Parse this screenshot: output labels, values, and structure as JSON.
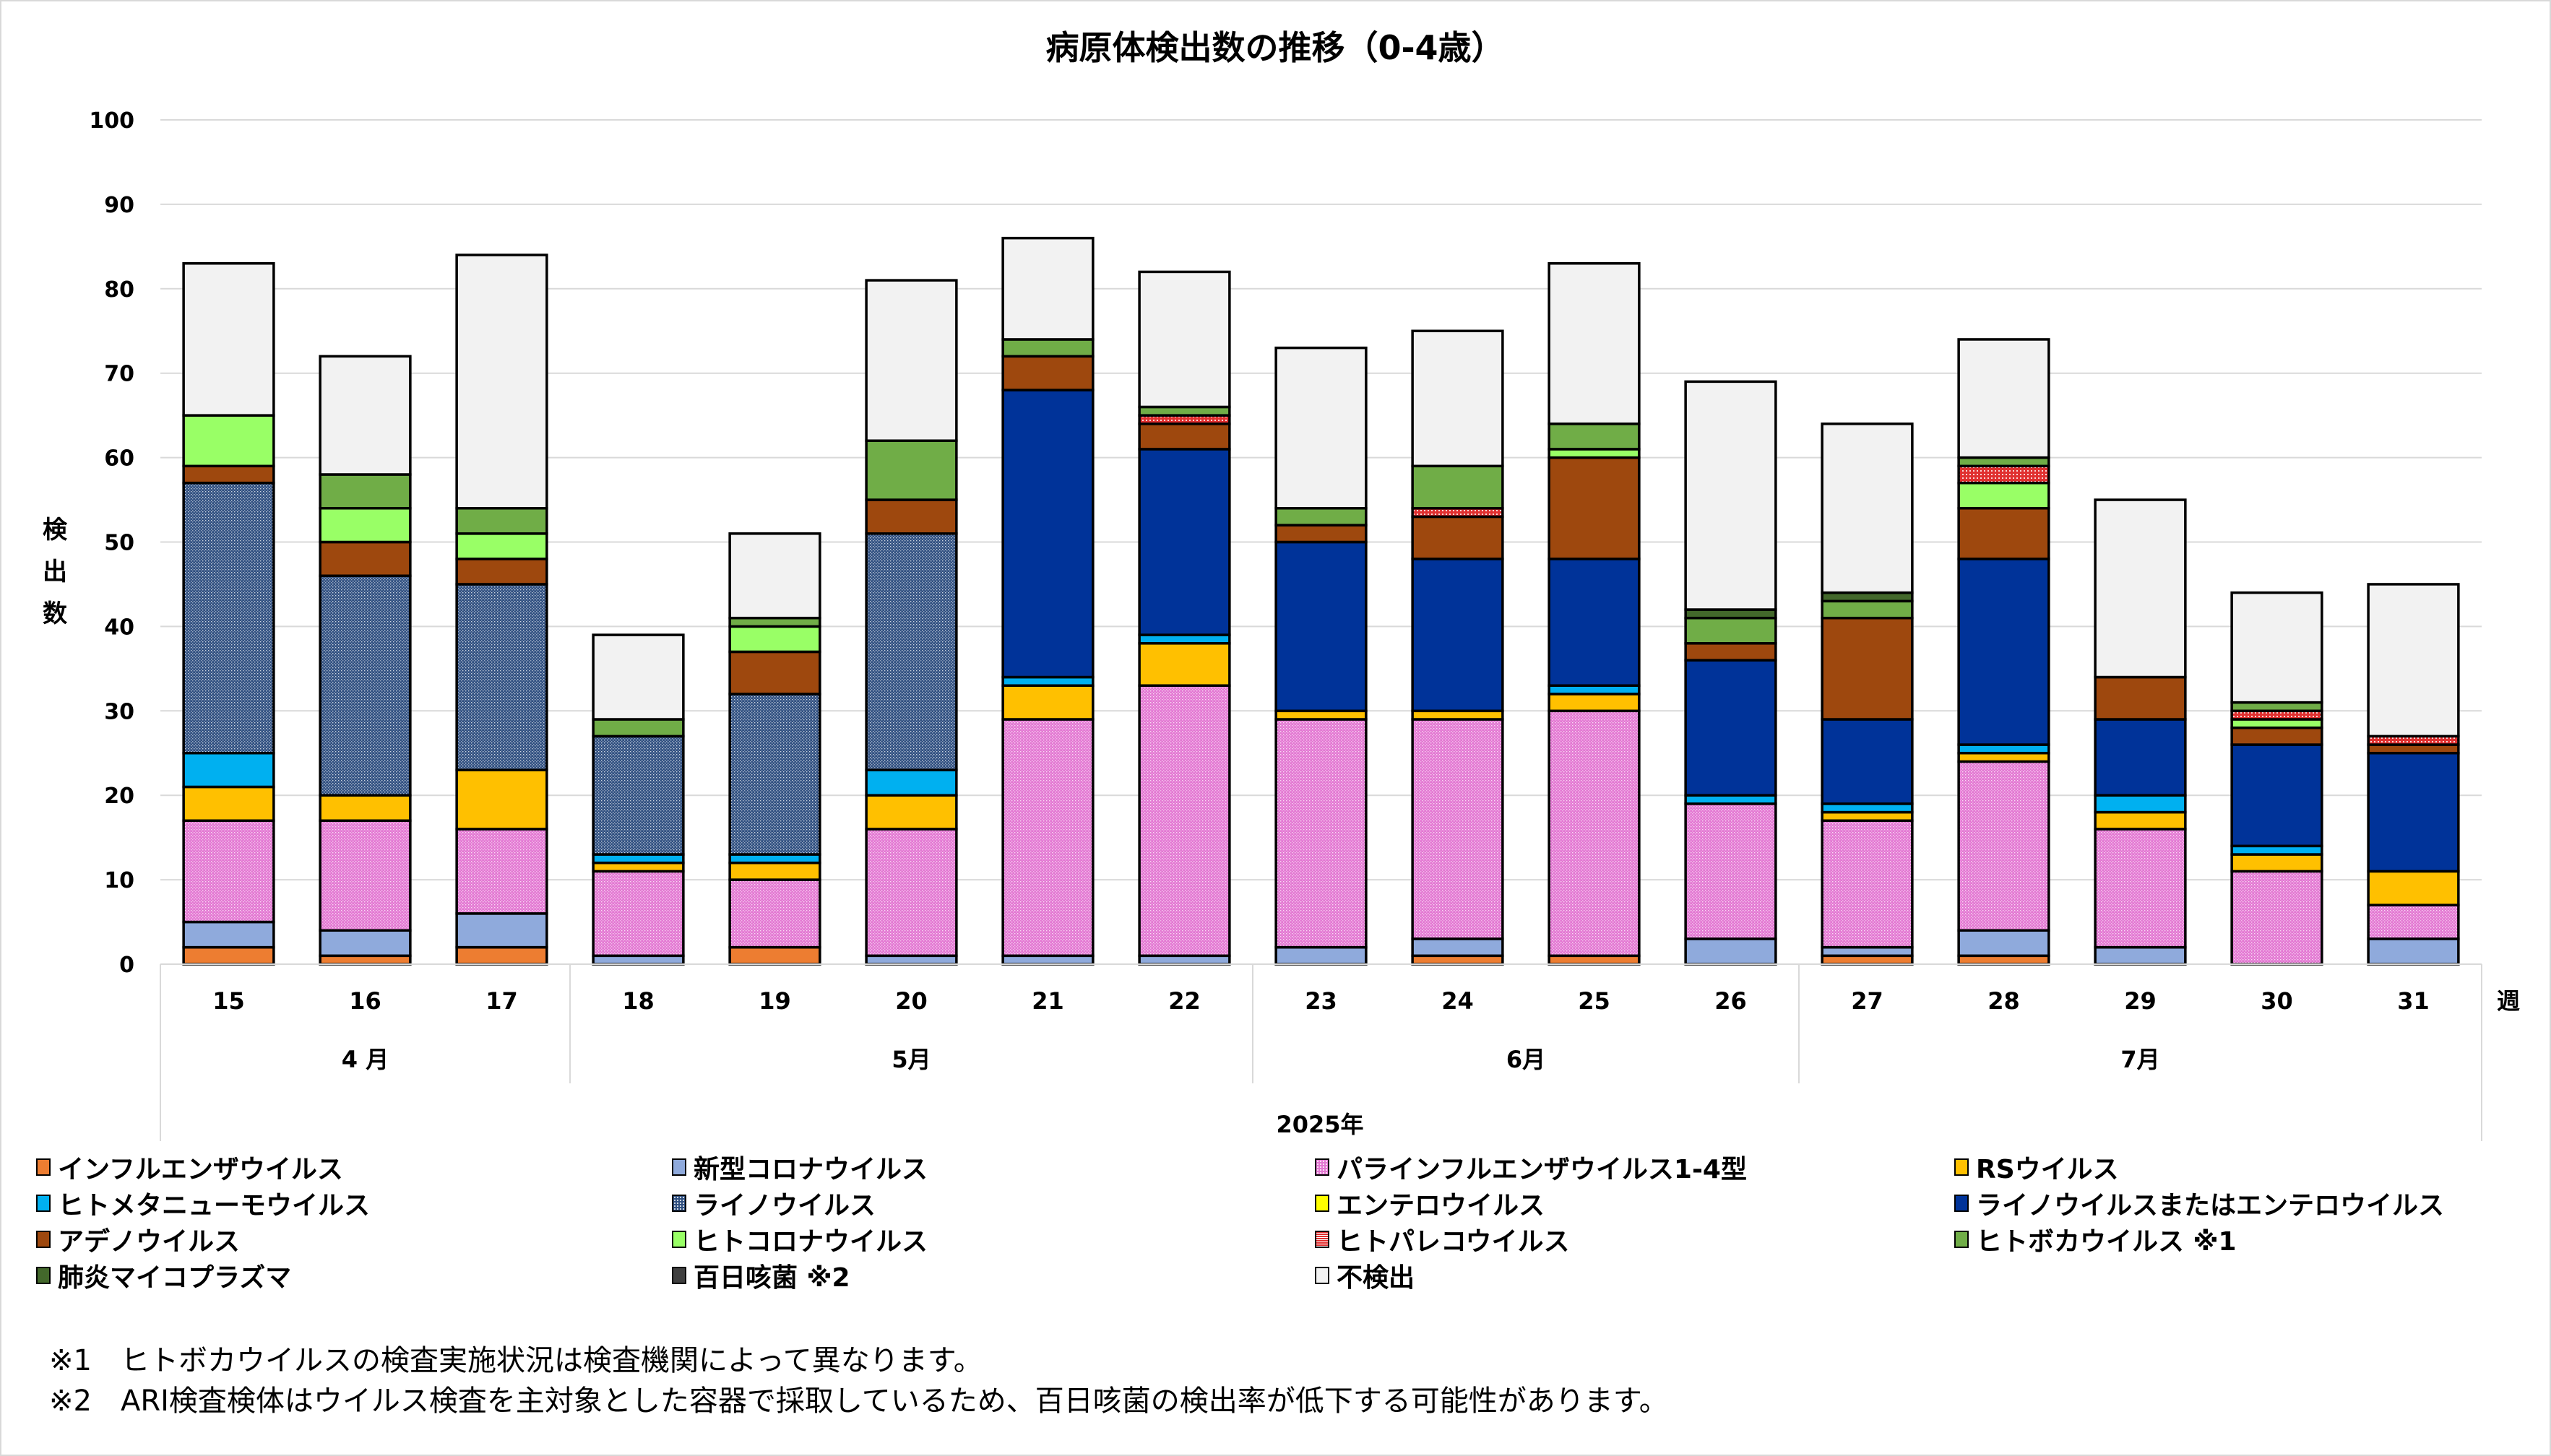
{
  "chart_data": {
    "type": "bar",
    "stacked": true,
    "title": "病原体検出数の推移（0-4歳）",
    "ylabel": "検出数",
    "xlabel": "2025年",
    "x_unit_label": "週",
    "ylim": [
      0,
      100
    ],
    "yticks": [
      0,
      10,
      20,
      30,
      40,
      50,
      60,
      70,
      80,
      90,
      100
    ],
    "grid": true,
    "legend_position": "bottom",
    "categories": [
      "15",
      "16",
      "17",
      "18",
      "19",
      "20",
      "21",
      "22",
      "23",
      "24",
      "25",
      "26",
      "27",
      "28",
      "29",
      "30",
      "31"
    ],
    "month_groups": [
      {
        "label": "4 月",
        "weeks": [
          "15",
          "16",
          "17"
        ]
      },
      {
        "label": "5月",
        "weeks": [
          "18",
          "19",
          "20",
          "21",
          "22"
        ]
      },
      {
        "label": "6月",
        "weeks": [
          "23",
          "24",
          "25",
          "26"
        ]
      },
      {
        "label": "7月",
        "weeks": [
          "27",
          "28",
          "29",
          "30",
          "31"
        ]
      }
    ],
    "series": [
      {
        "name": "インフルエンザウイルス",
        "color": "#ED7D31",
        "pattern": "none",
        "values": [
          2,
          1,
          2,
          0,
          2,
          0,
          0,
          0,
          0,
          1,
          1,
          0,
          1,
          1,
          0,
          0,
          0
        ]
      },
      {
        "name": "新型コロナウイルス",
        "color": "#8FAADC",
        "pattern": "none",
        "values": [
          3,
          3,
          4,
          1,
          0,
          1,
          1,
          1,
          2,
          2,
          0,
          3,
          1,
          3,
          2,
          0,
          3
        ]
      },
      {
        "name": "パラインフルエンザウイルス1-4型",
        "color": "#E377D2",
        "pattern": "dots",
        "values": [
          12,
          13,
          10,
          10,
          8,
          15,
          28,
          32,
          27,
          26,
          29,
          16,
          15,
          20,
          14,
          11,
          4
        ]
      },
      {
        "name": "RSウイルス",
        "color": "#FFC000",
        "pattern": "none",
        "values": [
          4,
          3,
          7,
          1,
          2,
          4,
          4,
          5,
          1,
          1,
          2,
          0,
          1,
          1,
          2,
          2,
          4
        ]
      },
      {
        "name": "ヒトメタニューモウイルス",
        "color": "#00B0F0",
        "pattern": "none",
        "values": [
          4,
          0,
          0,
          1,
          1,
          3,
          1,
          1,
          0,
          0,
          1,
          1,
          1,
          1,
          2,
          1,
          0
        ]
      },
      {
        "name": "ライノウイルス",
        "color": "#2F4F80",
        "pattern": "dots",
        "values": [
          32,
          26,
          22,
          14,
          19,
          28,
          0,
          0,
          0,
          0,
          0,
          0,
          0,
          0,
          0,
          0,
          0
        ]
      },
      {
        "name": "エンテロウイルス",
        "color": "#FFFF00",
        "pattern": "none",
        "values": [
          0,
          0,
          0,
          0,
          0,
          0,
          0,
          0,
          0,
          0,
          0,
          0,
          0,
          0,
          0,
          0,
          0
        ]
      },
      {
        "name": "ライノウイルスまたはエンテロウイルス",
        "color": "#003399",
        "pattern": "none",
        "values": [
          0,
          0,
          0,
          0,
          0,
          0,
          34,
          22,
          20,
          18,
          15,
          16,
          10,
          22,
          9,
          12,
          14
        ]
      },
      {
        "name": "アデノウイルス",
        "color": "#9E480E",
        "pattern": "none",
        "values": [
          2,
          4,
          3,
          0,
          5,
          4,
          4,
          3,
          2,
          5,
          12,
          2,
          12,
          6,
          5,
          2,
          1
        ]
      },
      {
        "name": "ヒトコロナウイルス",
        "color": "#99FF66",
        "pattern": "none",
        "values": [
          6,
          4,
          3,
          0,
          3,
          0,
          0,
          0,
          0,
          0,
          1,
          0,
          0,
          3,
          0,
          1,
          0
        ]
      },
      {
        "name": "ヒトパレコウイルス",
        "color": "#E03030",
        "pattern": "grid",
        "values": [
          0,
          0,
          0,
          0,
          0,
          0,
          0,
          1,
          0,
          1,
          0,
          0,
          0,
          2,
          0,
          1,
          1
        ]
      },
      {
        "name": "ヒトボカウイルス ※1",
        "color": "#70AD47",
        "pattern": "none",
        "values": [
          0,
          4,
          3,
          2,
          1,
          7,
          2,
          1,
          2,
          5,
          3,
          3,
          2,
          1,
          0,
          1,
          0
        ]
      },
      {
        "name": "肺炎マイコプラズマ",
        "color": "#43682B",
        "pattern": "none",
        "values": [
          0,
          0,
          0,
          0,
          0,
          0,
          0,
          0,
          0,
          0,
          0,
          1,
          1,
          0,
          0,
          0,
          0
        ]
      },
      {
        "name": "百日咳菌 ※2",
        "color": "#3F3F3F",
        "pattern": "none",
        "values": [
          0,
          0,
          0,
          0,
          0,
          0,
          0,
          0,
          0,
          0,
          0,
          0,
          0,
          0,
          0,
          0,
          0
        ]
      },
      {
        "name": "不検出",
        "color": "#F2F2F2",
        "pattern": "none",
        "values": [
          18,
          14,
          30,
          10,
          10,
          19,
          12,
          16,
          19,
          16,
          19,
          27,
          20,
          14,
          21,
          13,
          18
        ]
      }
    ],
    "totals": [
      83,
      72,
      84,
      39,
      51,
      81,
      86,
      82,
      73,
      75,
      83,
      69,
      64,
      74,
      55,
      44,
      45
    ]
  },
  "footnotes": [
    "※1　ヒトボカウイルスの検査実施状況は検査機関によって異なります。",
    "※2　ARI検査検体はウイルス検査を主対象とした容器で採取しているため、百日咳菌の検出率が低下する可能性があります。"
  ]
}
